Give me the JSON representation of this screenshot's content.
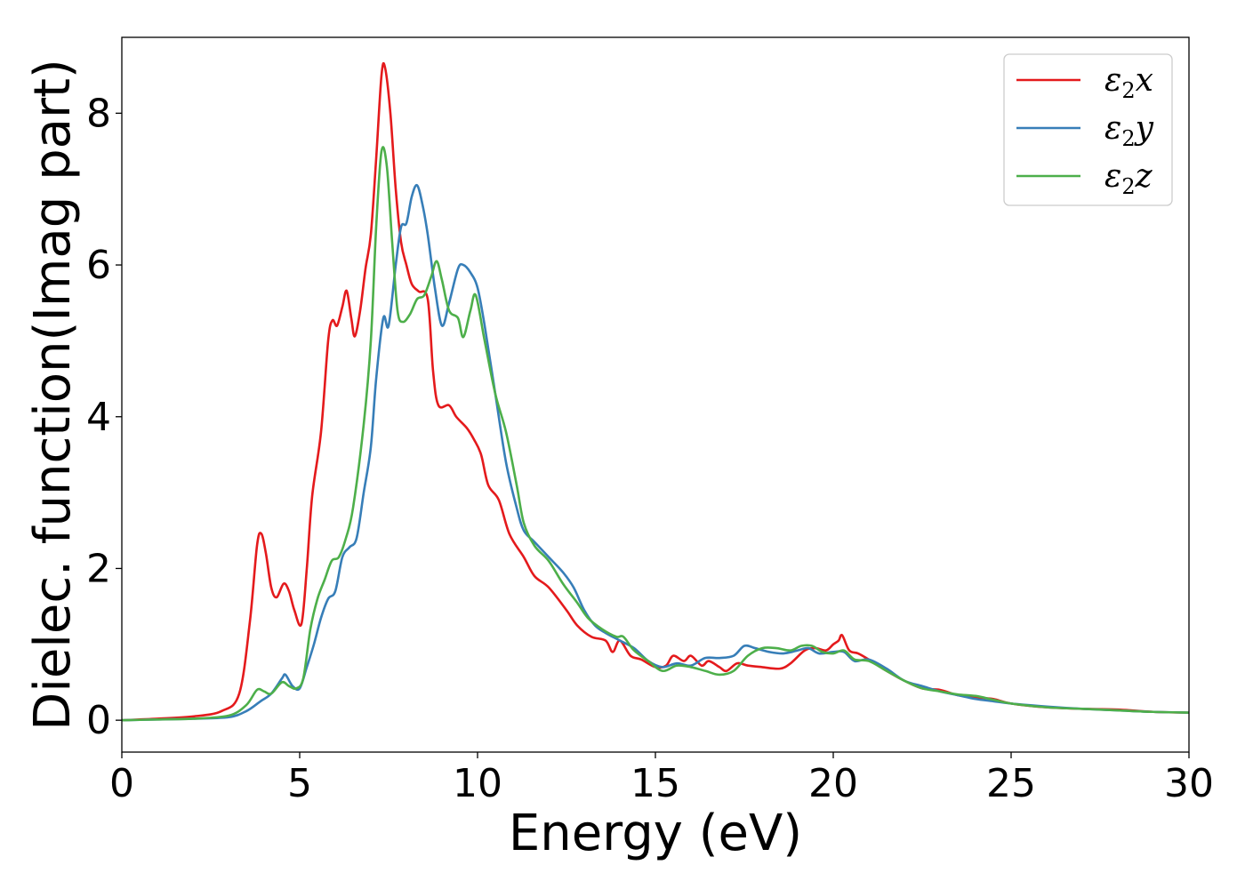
{
  "chart_data": {
    "type": "line",
    "title": "",
    "xlabel": "Energy (eV)",
    "ylabel": "Dielec. function(Imag part)",
    "xlim": [
      0,
      30
    ],
    "ylim": [
      -0.42,
      9.0
    ],
    "xticks": [
      0,
      5,
      10,
      15,
      20,
      25,
      30
    ],
    "yticks": [
      0,
      2,
      4,
      6,
      8
    ],
    "grid": false,
    "legend_position": "top-right",
    "series": [
      {
        "name": "ε₂x",
        "legend_base": "ε",
        "legend_sub": "2",
        "legend_tail": "x",
        "color": "#e41a1c",
        "points": [
          [
            0,
            0
          ],
          [
            1,
            0.02
          ],
          [
            2,
            0.05
          ],
          [
            2.8,
            0.12
          ],
          [
            3.3,
            0.35
          ],
          [
            3.6,
            1.3
          ],
          [
            3.8,
            2.3
          ],
          [
            3.92,
            2.46
          ],
          [
            4.05,
            2.2
          ],
          [
            4.2,
            1.75
          ],
          [
            4.35,
            1.62
          ],
          [
            4.55,
            1.8
          ],
          [
            4.7,
            1.7
          ],
          [
            4.85,
            1.45
          ],
          [
            5.05,
            1.27
          ],
          [
            5.2,
            2.0
          ],
          [
            5.35,
            2.95
          ],
          [
            5.6,
            3.8
          ],
          [
            5.8,
            5.0
          ],
          [
            5.92,
            5.27
          ],
          [
            6.05,
            5.2
          ],
          [
            6.2,
            5.45
          ],
          [
            6.32,
            5.66
          ],
          [
            6.45,
            5.3
          ],
          [
            6.55,
            5.06
          ],
          [
            6.7,
            5.4
          ],
          [
            6.85,
            5.95
          ],
          [
            7.0,
            6.4
          ],
          [
            7.15,
            7.4
          ],
          [
            7.3,
            8.5
          ],
          [
            7.4,
            8.6
          ],
          [
            7.55,
            8.0
          ],
          [
            7.7,
            7.0
          ],
          [
            7.85,
            6.3
          ],
          [
            8.0,
            6.0
          ],
          [
            8.15,
            5.75
          ],
          [
            8.35,
            5.65
          ],
          [
            8.6,
            5.55
          ],
          [
            8.75,
            4.6
          ],
          [
            8.9,
            4.15
          ],
          [
            9.2,
            4.15
          ],
          [
            9.4,
            4.0
          ],
          [
            9.7,
            3.85
          ],
          [
            9.9,
            3.7
          ],
          [
            10.1,
            3.5
          ],
          [
            10.3,
            3.1
          ],
          [
            10.6,
            2.9
          ],
          [
            10.9,
            2.45
          ],
          [
            11.3,
            2.15
          ],
          [
            11.6,
            1.9
          ],
          [
            12.0,
            1.75
          ],
          [
            12.5,
            1.45
          ],
          [
            12.8,
            1.25
          ],
          [
            13.2,
            1.1
          ],
          [
            13.6,
            1.05
          ],
          [
            13.8,
            0.9
          ],
          [
            14.0,
            1.05
          ],
          [
            14.3,
            0.85
          ],
          [
            14.6,
            0.8
          ],
          [
            15.0,
            0.7
          ],
          [
            15.3,
            0.72
          ],
          [
            15.5,
            0.85
          ],
          [
            15.8,
            0.78
          ],
          [
            16.0,
            0.85
          ],
          [
            16.3,
            0.72
          ],
          [
            16.5,
            0.78
          ],
          [
            16.8,
            0.7
          ],
          [
            17.0,
            0.65
          ],
          [
            17.3,
            0.75
          ],
          [
            17.6,
            0.72
          ],
          [
            18.0,
            0.7
          ],
          [
            18.5,
            0.68
          ],
          [
            18.8,
            0.75
          ],
          [
            19.2,
            0.92
          ],
          [
            19.5,
            0.95
          ],
          [
            19.8,
            0.92
          ],
          [
            20.0,
            1.0
          ],
          [
            20.15,
            1.05
          ],
          [
            20.25,
            1.12
          ],
          [
            20.45,
            0.92
          ],
          [
            20.7,
            0.88
          ],
          [
            21.0,
            0.8
          ],
          [
            21.5,
            0.65
          ],
          [
            22.0,
            0.52
          ],
          [
            22.5,
            0.42
          ],
          [
            23.0,
            0.4
          ],
          [
            23.5,
            0.33
          ],
          [
            24.0,
            0.3
          ],
          [
            24.5,
            0.28
          ],
          [
            25.0,
            0.22
          ],
          [
            26.0,
            0.17
          ],
          [
            27.0,
            0.15
          ],
          [
            28.0,
            0.14
          ],
          [
            29.0,
            0.11
          ],
          [
            30.0,
            0.1
          ]
        ]
      },
      {
        "name": "ε₂y",
        "legend_base": "ε",
        "legend_sub": "2",
        "legend_tail": "y",
        "color": "#377eb8",
        "points": [
          [
            0,
            0
          ],
          [
            1,
            0.01
          ],
          [
            2,
            0.02
          ],
          [
            3.0,
            0.04
          ],
          [
            3.5,
            0.12
          ],
          [
            3.9,
            0.25
          ],
          [
            4.2,
            0.35
          ],
          [
            4.5,
            0.55
          ],
          [
            4.6,
            0.6
          ],
          [
            4.8,
            0.45
          ],
          [
            5.0,
            0.42
          ],
          [
            5.2,
            0.7
          ],
          [
            5.4,
            1.0
          ],
          [
            5.6,
            1.35
          ],
          [
            5.8,
            1.6
          ],
          [
            6.0,
            1.7
          ],
          [
            6.2,
            2.15
          ],
          [
            6.4,
            2.28
          ],
          [
            6.6,
            2.4
          ],
          [
            6.8,
            3.0
          ],
          [
            7.0,
            3.6
          ],
          [
            7.15,
            4.5
          ],
          [
            7.35,
            5.3
          ],
          [
            7.5,
            5.2
          ],
          [
            7.7,
            6.0
          ],
          [
            7.85,
            6.5
          ],
          [
            8.0,
            6.55
          ],
          [
            8.15,
            6.9
          ],
          [
            8.3,
            7.05
          ],
          [
            8.45,
            6.8
          ],
          [
            8.6,
            6.4
          ],
          [
            8.8,
            5.7
          ],
          [
            9.0,
            5.2
          ],
          [
            9.2,
            5.5
          ],
          [
            9.45,
            5.95
          ],
          [
            9.6,
            6.0
          ],
          [
            9.8,
            5.9
          ],
          [
            10.0,
            5.7
          ],
          [
            10.2,
            5.2
          ],
          [
            10.5,
            4.3
          ],
          [
            10.8,
            3.4
          ],
          [
            11.1,
            2.8
          ],
          [
            11.3,
            2.5
          ],
          [
            11.6,
            2.35
          ],
          [
            12.0,
            2.15
          ],
          [
            12.4,
            1.95
          ],
          [
            12.7,
            1.75
          ],
          [
            13.0,
            1.45
          ],
          [
            13.3,
            1.25
          ],
          [
            13.6,
            1.15
          ],
          [
            14.0,
            1.05
          ],
          [
            14.4,
            0.95
          ],
          [
            14.8,
            0.78
          ],
          [
            15.2,
            0.7
          ],
          [
            15.6,
            0.75
          ],
          [
            16.0,
            0.72
          ],
          [
            16.4,
            0.82
          ],
          [
            16.8,
            0.82
          ],
          [
            17.2,
            0.85
          ],
          [
            17.5,
            0.98
          ],
          [
            17.8,
            0.95
          ],
          [
            18.2,
            0.9
          ],
          [
            18.6,
            0.88
          ],
          [
            19.0,
            0.92
          ],
          [
            19.3,
            0.95
          ],
          [
            19.6,
            0.88
          ],
          [
            20.0,
            0.9
          ],
          [
            20.3,
            0.9
          ],
          [
            20.6,
            0.78
          ],
          [
            21.0,
            0.8
          ],
          [
            21.5,
            0.68
          ],
          [
            22.0,
            0.52
          ],
          [
            22.5,
            0.45
          ],
          [
            23.0,
            0.38
          ],
          [
            23.5,
            0.33
          ],
          [
            24.0,
            0.28
          ],
          [
            24.5,
            0.25
          ],
          [
            25.0,
            0.22
          ],
          [
            26.0,
            0.18
          ],
          [
            27.0,
            0.15
          ],
          [
            28.0,
            0.13
          ],
          [
            29.0,
            0.11
          ],
          [
            30.0,
            0.1
          ]
        ]
      },
      {
        "name": "ε₂z",
        "legend_base": "ε",
        "legend_sub": "2",
        "legend_tail": "z",
        "color": "#4daf4a",
        "points": [
          [
            0,
            0
          ],
          [
            1,
            0.01
          ],
          [
            2,
            0.02
          ],
          [
            3.0,
            0.06
          ],
          [
            3.5,
            0.2
          ],
          [
            3.8,
            0.4
          ],
          [
            4.0,
            0.38
          ],
          [
            4.2,
            0.35
          ],
          [
            4.5,
            0.5
          ],
          [
            4.7,
            0.45
          ],
          [
            4.9,
            0.42
          ],
          [
            5.1,
            0.55
          ],
          [
            5.3,
            1.2
          ],
          [
            5.5,
            1.6
          ],
          [
            5.7,
            1.85
          ],
          [
            5.9,
            2.1
          ],
          [
            6.1,
            2.15
          ],
          [
            6.3,
            2.4
          ],
          [
            6.5,
            2.8
          ],
          [
            6.8,
            3.9
          ],
          [
            7.0,
            5.0
          ],
          [
            7.15,
            6.5
          ],
          [
            7.3,
            7.5
          ],
          [
            7.45,
            7.3
          ],
          [
            7.6,
            6.3
          ],
          [
            7.75,
            5.4
          ],
          [
            7.9,
            5.25
          ],
          [
            8.1,
            5.35
          ],
          [
            8.3,
            5.55
          ],
          [
            8.5,
            5.6
          ],
          [
            8.7,
            5.85
          ],
          [
            8.85,
            6.05
          ],
          [
            9.0,
            5.8
          ],
          [
            9.2,
            5.4
          ],
          [
            9.45,
            5.3
          ],
          [
            9.6,
            5.05
          ],
          [
            9.8,
            5.4
          ],
          [
            9.95,
            5.6
          ],
          [
            10.2,
            5.0
          ],
          [
            10.5,
            4.3
          ],
          [
            10.8,
            3.8
          ],
          [
            11.1,
            3.1
          ],
          [
            11.3,
            2.6
          ],
          [
            11.6,
            2.3
          ],
          [
            12.0,
            2.1
          ],
          [
            12.4,
            1.8
          ],
          [
            12.8,
            1.55
          ],
          [
            13.1,
            1.35
          ],
          [
            13.5,
            1.2
          ],
          [
            13.9,
            1.1
          ],
          [
            14.1,
            1.1
          ],
          [
            14.4,
            0.92
          ],
          [
            14.8,
            0.78
          ],
          [
            15.2,
            0.65
          ],
          [
            15.6,
            0.72
          ],
          [
            16.0,
            0.7
          ],
          [
            16.4,
            0.65
          ],
          [
            16.8,
            0.6
          ],
          [
            17.2,
            0.65
          ],
          [
            17.6,
            0.85
          ],
          [
            18.0,
            0.95
          ],
          [
            18.4,
            0.95
          ],
          [
            18.8,
            0.92
          ],
          [
            19.1,
            0.98
          ],
          [
            19.4,
            0.98
          ],
          [
            19.7,
            0.9
          ],
          [
            20.0,
            0.88
          ],
          [
            20.3,
            0.92
          ],
          [
            20.6,
            0.8
          ],
          [
            21.0,
            0.78
          ],
          [
            21.5,
            0.65
          ],
          [
            22.0,
            0.52
          ],
          [
            22.5,
            0.42
          ],
          [
            23.0,
            0.38
          ],
          [
            23.5,
            0.34
          ],
          [
            24.0,
            0.32
          ],
          [
            24.5,
            0.27
          ],
          [
            25.0,
            0.22
          ],
          [
            26.0,
            0.17
          ],
          [
            27.0,
            0.15
          ],
          [
            28.0,
            0.13
          ],
          [
            29.0,
            0.11
          ],
          [
            30.0,
            0.1
          ]
        ]
      }
    ]
  }
}
